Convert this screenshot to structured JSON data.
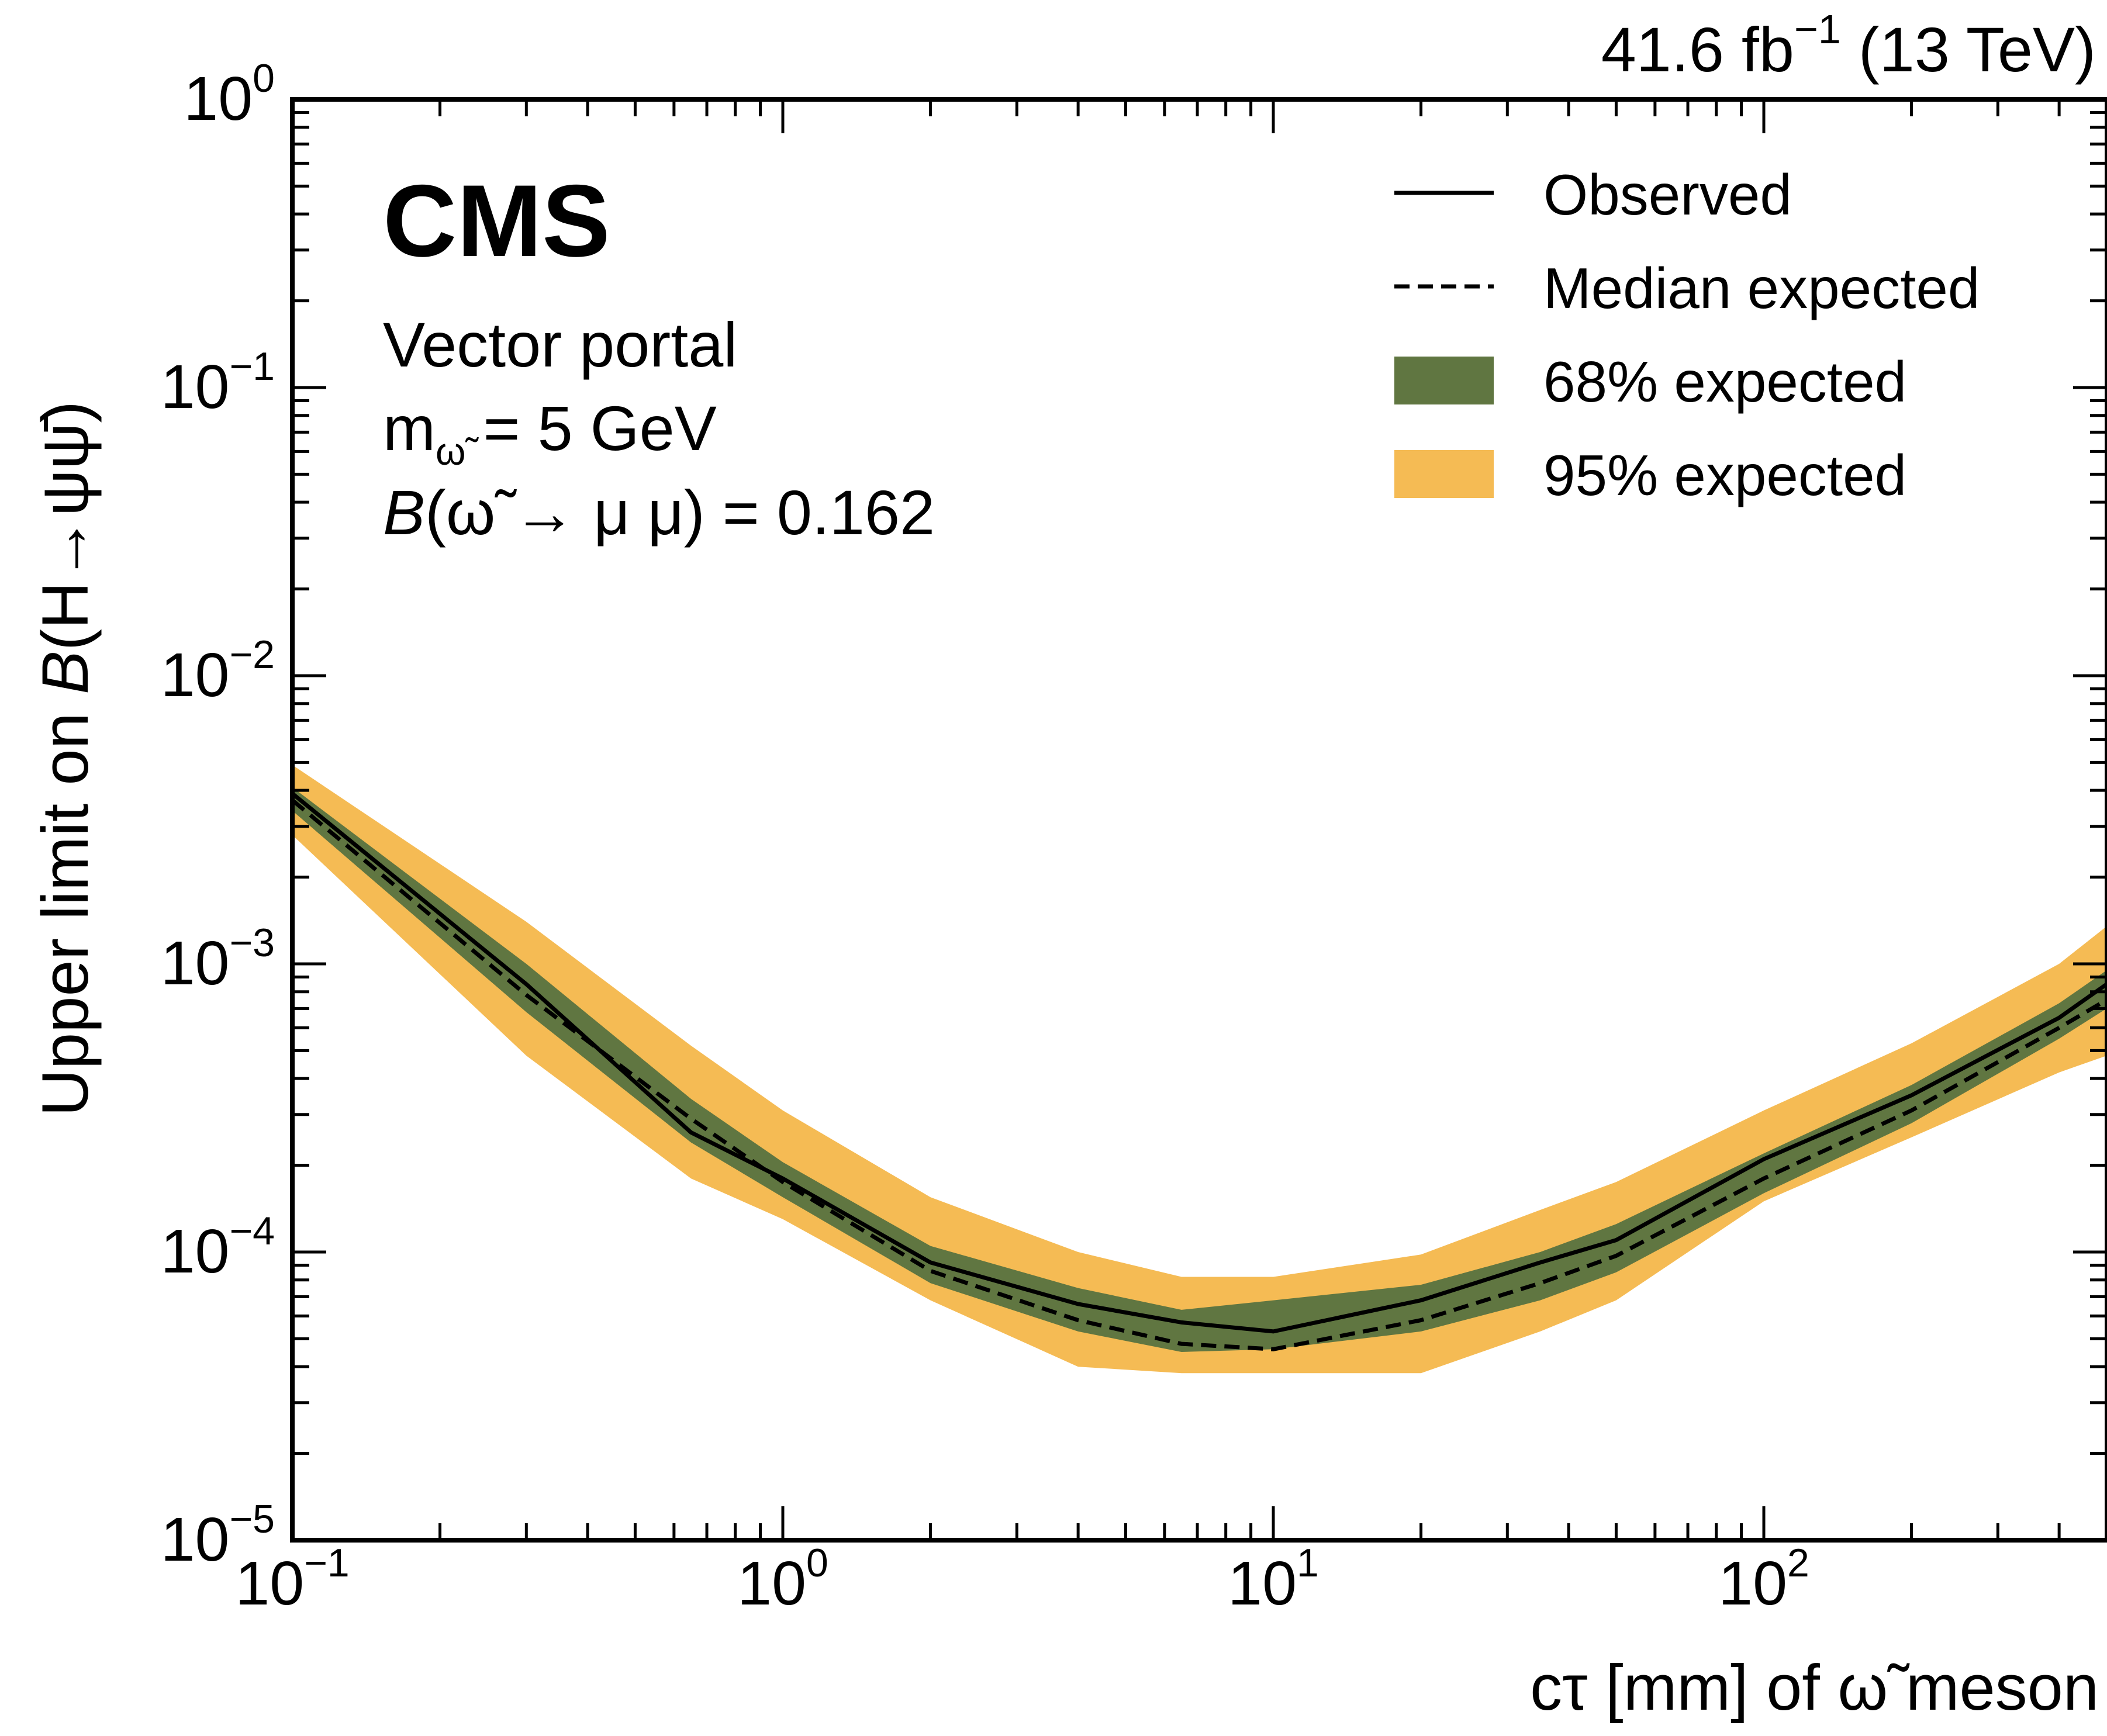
{
  "header": {
    "lumi_prefix": "41.6 fb",
    "lumi_exponent": "−1",
    "lumi_suffix": " (13 TeV)",
    "experiment": "CMS"
  },
  "annotations": {
    "model": "Vector portal",
    "mass_lhs": "m",
    "mass_sub": "ω̃",
    "mass_rhs": " = 5 GeV",
    "br_symbol": "B",
    "br_body": "(ω̃ → μ μ) = 0.162"
  },
  "colors": {
    "band68": "#607641",
    "band95": "#f5bb54",
    "line": "#000000",
    "background": "#ffffff"
  },
  "chart_data": {
    "type": "line",
    "scale": {
      "x": "log",
      "y": "log"
    },
    "xlim": [
      0.1,
      500
    ],
    "ylim": [
      1e-05,
      1
    ],
    "xlabel": "cτ [mm] of ω̃ meson",
    "ylabel_prefix": "Upper limit on ",
    "ylabel_symbol": "B",
    "ylabel_suffix": "(H→ψψ̄)",
    "x_ticks": [
      {
        "base": "10",
        "exp": "−1",
        "value": 0.1
      },
      {
        "base": "10",
        "exp": "0",
        "value": 1
      },
      {
        "base": "10",
        "exp": "1",
        "value": 10
      },
      {
        "base": "10",
        "exp": "2",
        "value": 100
      }
    ],
    "y_ticks": [
      {
        "base": "10",
        "exp": "−5",
        "value": 1e-05
      },
      {
        "base": "10",
        "exp": "−4",
        "value": 0.0001
      },
      {
        "base": "10",
        "exp": "−3",
        "value": 0.001
      },
      {
        "base": "10",
        "exp": "−2",
        "value": 0.01
      },
      {
        "base": "10",
        "exp": "−1",
        "value": 0.1
      },
      {
        "base": "10",
        "exp": "0",
        "value": 1
      }
    ],
    "x": [
      0.1,
      0.3,
      0.65,
      1.0,
      2.0,
      4.0,
      6.5,
      10,
      20,
      35,
      50,
      100,
      200,
      400,
      500
    ],
    "observed": [
      0.0039,
      0.00085,
      0.00026,
      0.00018,
      9.2e-05,
      6.6e-05,
      5.7e-05,
      5.3e-05,
      6.8e-05,
      9.2e-05,
      0.00011,
      0.00021,
      0.00035,
      0.00065,
      0.00085
    ],
    "expected": [
      0.0037,
      0.00078,
      0.00029,
      0.000175,
      8.6e-05,
      5.8e-05,
      4.8e-05,
      4.6e-05,
      5.8e-05,
      7.8e-05,
      9.7e-05,
      0.00018,
      0.00031,
      0.0006,
      0.00075
    ],
    "band68_low": [
      0.0034,
      0.00068,
      0.00024,
      0.000155,
      7.8e-05,
      5.3e-05,
      4.5e-05,
      4.6e-05,
      5.3e-05,
      6.8e-05,
      8.5e-05,
      0.00016,
      0.00028,
      0.00055,
      0.0007
    ],
    "band68_high": [
      0.0041,
      0.001,
      0.00034,
      0.000205,
      0.000105,
      7.5e-05,
      6.3e-05,
      6.8e-05,
      7.7e-05,
      0.0001,
      0.000125,
      0.00022,
      0.00038,
      0.00073,
      0.00095
    ],
    "band95_low": [
      0.0028,
      0.00048,
      0.00018,
      0.00013,
      6.8e-05,
      4e-05,
      3.8e-05,
      3.8e-05,
      3.8e-05,
      5.3e-05,
      6.8e-05,
      0.00015,
      0.00025,
      0.00042,
      0.00048
    ],
    "band95_high": [
      0.0049,
      0.0014,
      0.00052,
      0.00031,
      0.000155,
      0.0001,
      8.2e-05,
      8.2e-05,
      9.8e-05,
      0.00014,
      0.000175,
      0.00031,
      0.00053,
      0.001,
      0.00135
    ],
    "legend": {
      "position": "top-right",
      "entries": [
        {
          "label": "Observed",
          "style": "solid"
        },
        {
          "label": "Median expected",
          "style": "dashed"
        },
        {
          "label": "68% expected",
          "style": "band68"
        },
        {
          "label": "95% expected",
          "style": "band95"
        }
      ]
    }
  }
}
